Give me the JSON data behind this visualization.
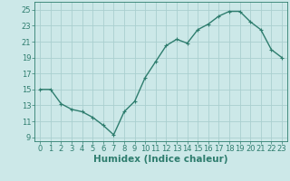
{
  "x": [
    0,
    1,
    2,
    3,
    4,
    5,
    6,
    7,
    8,
    9,
    10,
    11,
    12,
    13,
    14,
    15,
    16,
    17,
    18,
    19,
    20,
    21,
    22,
    23
  ],
  "y": [
    15,
    15,
    13.2,
    12.5,
    12.2,
    11.5,
    10.5,
    9.3,
    12.2,
    13.5,
    16.5,
    18.5,
    20.5,
    21.3,
    20.8,
    22.5,
    23.2,
    24.2,
    24.8,
    24.8,
    23.5,
    22.5,
    20,
    19
  ],
  "line_color": "#2e7d6e",
  "marker": "+",
  "marker_size": 3,
  "marker_edge_width": 0.8,
  "bg_color": "#cce8e8",
  "grid_color": "#aacfcf",
  "xlabel": "Humidex (Indice chaleur)",
  "xlabel_fontsize": 7.5,
  "xlim": [
    -0.5,
    23.5
  ],
  "ylim": [
    8.5,
    26
  ],
  "yticks": [
    9,
    11,
    13,
    15,
    17,
    19,
    21,
    23,
    25
  ],
  "xticks": [
    0,
    1,
    2,
    3,
    4,
    5,
    6,
    7,
    8,
    9,
    10,
    11,
    12,
    13,
    14,
    15,
    16,
    17,
    18,
    19,
    20,
    21,
    22,
    23
  ],
  "tick_label_fontsize": 6,
  "axis_color": "#2e7d6e",
  "line_width": 1.0
}
